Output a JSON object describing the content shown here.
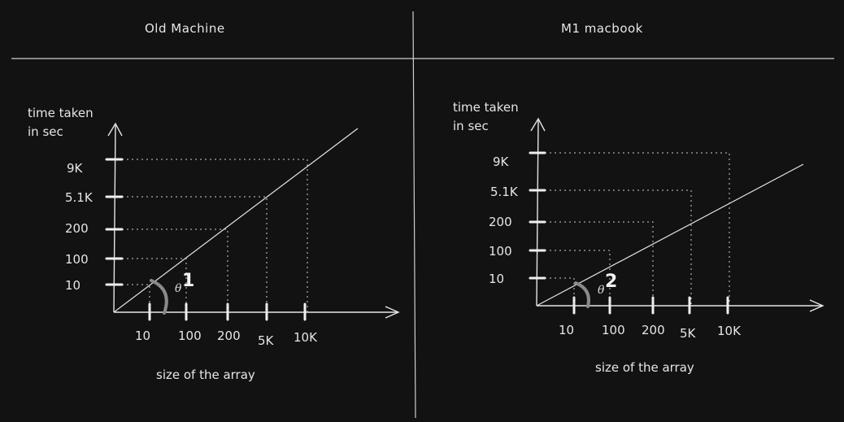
{
  "panels": [
    {
      "title": "Old Machine",
      "y_axis_label_1": "time taken",
      "y_axis_label_2": "in sec",
      "x_axis_label": "size of the array",
      "y_ticks": [
        "9K",
        "5.1K",
        "200",
        "100",
        "10"
      ],
      "x_ticks": [
        "10",
        "100",
        "200",
        "5K",
        "10K"
      ],
      "marker": "1",
      "angle_symbol": "θ"
    },
    {
      "title": "M1 macbook",
      "y_axis_label_1": "time taken",
      "y_axis_label_2": "in sec",
      "x_axis_label": "size of the array",
      "y_ticks": [
        "9K",
        "5.1K",
        "200",
        "100",
        "10"
      ],
      "x_ticks": [
        "10",
        "100",
        "200",
        "5K",
        "10K"
      ],
      "marker": "2",
      "angle_symbol": "θ"
    }
  ],
  "colors": {
    "background": "#121212",
    "ink": "#e8e8e8",
    "angle_arc": "#8a8a8a"
  }
}
